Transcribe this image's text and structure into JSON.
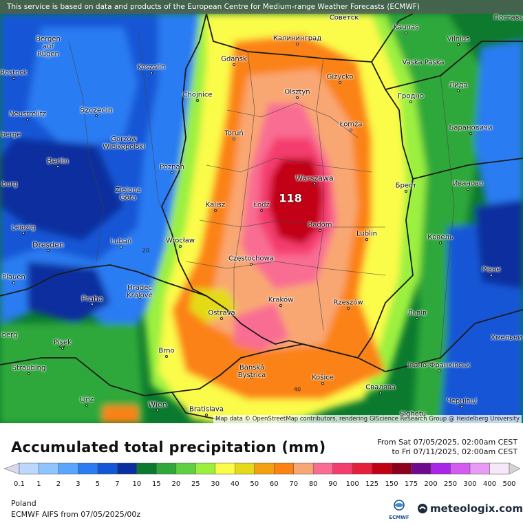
{
  "banner": {
    "text": "This service is based on data and products of the European Centre for Medium-range Weather Forecasts (ECMWF)"
  },
  "map": {
    "credits": "Map data © OpenStreetMap contributors, rendering GIScience Research Group @ Heidelberg University",
    "max_value": "118",
    "contour_labels": [
      "20",
      "20",
      "40"
    ],
    "cities": [
      {
        "name": "Советск",
        "dot": false
      },
      {
        "name": "Bergen auf Rügen",
        "dot": false
      },
      {
        "name": "Калининград",
        "dot": true
      },
      {
        "name": "Kaunas",
        "dot": true
      },
      {
        "name": "Vilnius",
        "dot": true
      },
      {
        "name": "Rostock",
        "dot": true
      },
      {
        "name": "Koszalin",
        "dot": true
      },
      {
        "name": "Gdańsk",
        "dot": true
      },
      {
        "name": "Vaska Paska",
        "dot": false
      },
      {
        "name": "Giżycko",
        "dot": true
      },
      {
        "name": "Лида",
        "dot": true
      },
      {
        "name": "Chojnice",
        "dot": true
      },
      {
        "name": "Olsztyn",
        "dot": true
      },
      {
        "name": "Гродно",
        "dot": true
      },
      {
        "name": "Neustrelitz",
        "dot": true
      },
      {
        "name": "Szczecin",
        "dot": true
      },
      {
        "name": "Łomża",
        "dot": true
      },
      {
        "name": "Барановичи",
        "dot": true
      },
      {
        "name": "berge",
        "dot": false
      },
      {
        "name": "Gorzów Wielkopolski",
        "dot": true
      },
      {
        "name": "Toruń",
        "dot": true
      },
      {
        "name": "Berlin",
        "dot": true
      },
      {
        "name": "Poznań",
        "dot": true
      },
      {
        "name": "Warszawa",
        "dot": true
      },
      {
        "name": "burg",
        "dot": false
      },
      {
        "name": "Брест",
        "dot": true
      },
      {
        "name": "Иваново",
        "dot": true
      },
      {
        "name": "Zielona Góra",
        "dot": true
      },
      {
        "name": "Kalisz",
        "dot": true
      },
      {
        "name": "Łódź",
        "dot": true
      },
      {
        "name": "Radom",
        "dot": true
      },
      {
        "name": "Leipzig",
        "dot": true
      },
      {
        "name": "Lublin",
        "dot": true
      },
      {
        "name": "Ковель",
        "dot": true
      },
      {
        "name": "Dresden",
        "dot": true
      },
      {
        "name": "Lubań",
        "dot": true
      },
      {
        "name": "Wrocław",
        "dot": true
      },
      {
        "name": "Częstochowa",
        "dot": true
      },
      {
        "name": "Рівне",
        "dot": true
      },
      {
        "name": "Plauen",
        "dot": true
      },
      {
        "name": "Hradec Králové",
        "dot": true
      },
      {
        "name": "Praha",
        "dot": true
      },
      {
        "name": "Kraków",
        "dot": true
      },
      {
        "name": "Rzeszów",
        "dot": true
      },
      {
        "name": "Ostrava",
        "dot": true
      },
      {
        "name": "Львів",
        "dot": true
      },
      {
        "name": "berg",
        "dot": false
      },
      {
        "name": "Хмельни",
        "dot": false
      },
      {
        "name": "Písek",
        "dot": true
      },
      {
        "name": "Brno",
        "dot": true
      },
      {
        "name": "Banská Bystrica",
        "dot": true
      },
      {
        "name": "Straubing",
        "dot": true
      },
      {
        "name": "Košice",
        "dot": true
      },
      {
        "name": "Івано-Франківськ",
        "dot": true
      },
      {
        "name": "Свалява",
        "dot": true
      },
      {
        "name": "Linz",
        "dot": true
      },
      {
        "name": "Wien",
        "dot": true
      },
      {
        "name": "Bratislava",
        "dot": true
      },
      {
        "name": "Чернівці",
        "dot": true
      },
      {
        "name": "Sighetu",
        "dot": false
      },
      {
        "name": "Поставы",
        "dot": false
      }
    ]
  },
  "legend": {
    "title": "Accumulated total precipitation (mm)",
    "from": "From Sat 07/05/2025, 02:00am CEST",
    "to": "to Fri 07/11/2025, 02:00am CEST",
    "ticks": [
      "0.1",
      "1",
      "2",
      "3",
      "5",
      "7",
      "10",
      "15",
      "20",
      "25",
      "30",
      "40",
      "50",
      "60",
      "70",
      "80",
      "90",
      "100",
      "125",
      "150",
      "175",
      "200",
      "250",
      "300",
      "400",
      "500"
    ],
    "colors": [
      "#d9d9ee",
      "#bcd8ff",
      "#8ec4ff",
      "#5aa6ff",
      "#2a7cf2",
      "#1356d6",
      "#0a2f9e",
      "#0b7a2e",
      "#2fa83b",
      "#5fd040",
      "#9bf03f",
      "#fbfb4a",
      "#e4da18",
      "#f5a010",
      "#fb8213",
      "#f9a772",
      "#f96d93",
      "#f43d6e",
      "#e61f3b",
      "#c20014",
      "#8b001a",
      "#6e0a8e",
      "#a925e8",
      "#d45af2",
      "#e89bf5",
      "#f7e7fa",
      "#d4d4d4"
    ]
  },
  "footer": {
    "region": "Poland",
    "model": "ECMWF AIFS from  07/05/2025/00z",
    "ecmwf_label": "ECMWF",
    "brand": "meteologix.com"
  }
}
